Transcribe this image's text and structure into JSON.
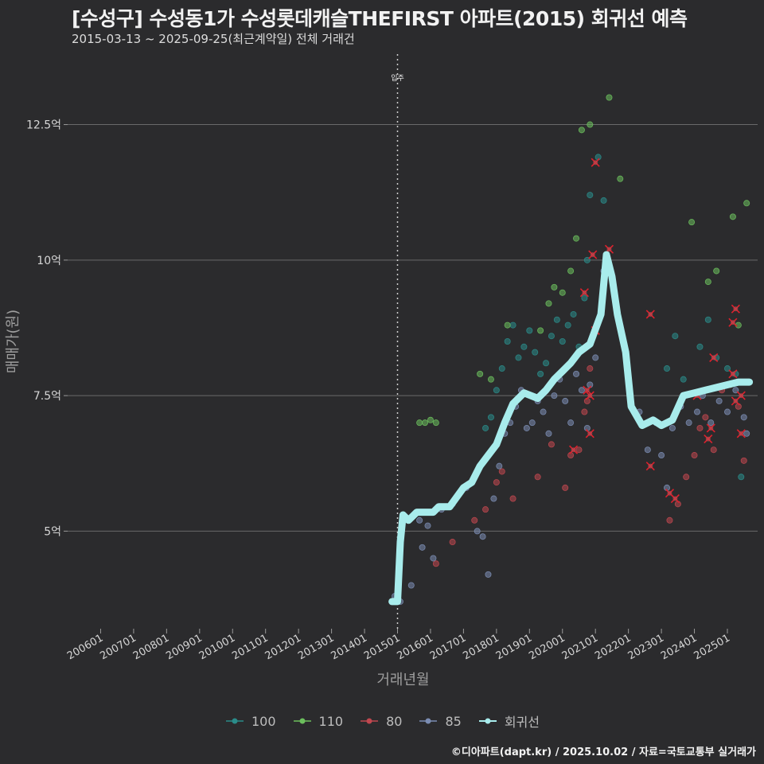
{
  "title": "[수성구] 수성동1가 수성롯데캐슬THEFIRST 아파트(2015) 회귀선 예측",
  "subtitle": "2015-03-13 ~ 2025-09-25(최근계약일) 전체 거래건",
  "footer": "©디아파트(dapt.kr) / 2025.10.02 / 자료=국토교통부 실거래가",
  "colors": {
    "background": "#2b2b2d",
    "grid": "#6a6a6a",
    "s100": "#2a8c8a",
    "s110": "#6cbf5d",
    "s80": "#c0474f",
    "s85": "#7b8db3",
    "regression": "#a8ecec",
    "cancelled_marker": "#e0202c"
  },
  "chart_data": {
    "type": "scatter",
    "xlabel": "거래년월",
    "ylabel": "매매가(원)",
    "xlim": [
      "2005-01",
      "2025-12"
    ],
    "ylim": [
      3.2,
      13.8
    ],
    "grid": true,
    "legend_position": "bottom",
    "x_ticks": [
      "200601",
      "200701",
      "200801",
      "200901",
      "201001",
      "201101",
      "201201",
      "201301",
      "201401",
      "201501",
      "201601",
      "201701",
      "201801",
      "201901",
      "202001",
      "202101",
      "202201",
      "202301",
      "202401",
      "202501"
    ],
    "y_ticks": [
      {
        "value": 5,
        "label": "5억"
      },
      {
        "value": 7.5,
        "label": "7.5억"
      },
      {
        "value": 10,
        "label": "10억"
      },
      {
        "value": 12.5,
        "label": "12.5억"
      }
    ],
    "annotation": {
      "label": "입주",
      "x": "2015-01"
    },
    "series": [
      {
        "name": "100",
        "color_key": "s100",
        "points": [
          [
            "2017-09",
            6.9
          ],
          [
            "2017-11",
            7.1
          ],
          [
            "2018-01",
            7.6
          ],
          [
            "2018-03",
            8.0
          ],
          [
            "2018-05",
            8.5
          ],
          [
            "2018-07",
            8.8
          ],
          [
            "2018-09",
            8.2
          ],
          [
            "2018-11",
            8.4
          ],
          [
            "2019-01",
            8.7
          ],
          [
            "2019-03",
            8.3
          ],
          [
            "2019-05",
            7.9
          ],
          [
            "2019-07",
            8.1
          ],
          [
            "2019-09",
            8.6
          ],
          [
            "2019-11",
            8.9
          ],
          [
            "2020-01",
            8.5
          ],
          [
            "2020-03",
            8.8
          ],
          [
            "2020-05",
            9.0
          ],
          [
            "2020-07",
            8.4
          ],
          [
            "2020-09",
            9.3
          ],
          [
            "2020-10",
            10.0
          ],
          [
            "2020-11",
            11.2
          ],
          [
            "2021-02",
            11.9
          ],
          [
            "2021-04",
            11.1
          ],
          [
            "2023-03",
            8.0
          ],
          [
            "2023-06",
            8.6
          ],
          [
            "2023-09",
            7.8
          ],
          [
            "2024-03",
            8.4
          ],
          [
            "2024-06",
            8.9
          ],
          [
            "2024-09",
            8.2
          ],
          [
            "2025-01",
            8.0
          ],
          [
            "2025-04",
            7.9
          ],
          [
            "2025-06",
            6.0
          ]
        ]
      },
      {
        "name": "110",
        "color_key": "s110",
        "points": [
          [
            "2015-09",
            7.0
          ],
          [
            "2015-11",
            7.0
          ],
          [
            "2016-01",
            7.05
          ],
          [
            "2016-03",
            7.0
          ],
          [
            "2017-07",
            7.9
          ],
          [
            "2017-11",
            7.8
          ],
          [
            "2018-05",
            8.8
          ],
          [
            "2019-05",
            8.7
          ],
          [
            "2019-08",
            9.2
          ],
          [
            "2019-10",
            9.5
          ],
          [
            "2020-01",
            9.4
          ],
          [
            "2020-04",
            9.8
          ],
          [
            "2020-06",
            10.4
          ],
          [
            "2020-08",
            12.4
          ],
          [
            "2020-11",
            12.5
          ],
          [
            "2021-06",
            13.0
          ],
          [
            "2021-10",
            11.5
          ],
          [
            "2023-12",
            10.7
          ],
          [
            "2024-06",
            9.6
          ],
          [
            "2024-09",
            9.8
          ],
          [
            "2025-03",
            10.8
          ],
          [
            "2025-08",
            11.05
          ],
          [
            "2025-05",
            8.8
          ]
        ]
      },
      {
        "name": "80",
        "color_key": "s80",
        "points": [
          [
            "2016-03",
            4.4
          ],
          [
            "2016-09",
            4.8
          ],
          [
            "2017-05",
            5.2
          ],
          [
            "2017-09",
            5.4
          ],
          [
            "2018-01",
            5.9
          ],
          [
            "2018-03",
            6.1
          ],
          [
            "2018-07",
            5.6
          ],
          [
            "2019-04",
            6.0
          ],
          [
            "2019-09",
            6.6
          ],
          [
            "2020-02",
            5.8
          ],
          [
            "2020-04",
            6.4
          ],
          [
            "2020-07",
            6.5
          ],
          [
            "2020-09",
            7.2
          ],
          [
            "2020-10",
            7.4
          ],
          [
            "2020-11",
            8.0
          ],
          [
            "2023-04",
            5.2
          ],
          [
            "2023-07",
            5.5
          ],
          [
            "2023-10",
            6.0
          ],
          [
            "2024-01",
            6.4
          ],
          [
            "2024-03",
            6.9
          ],
          [
            "2024-05",
            7.1
          ],
          [
            "2024-08",
            6.5
          ],
          [
            "2024-11",
            7.6
          ],
          [
            "2025-02",
            7.7
          ],
          [
            "2025-05",
            7.3
          ],
          [
            "2025-07",
            6.3
          ]
        ]
      },
      {
        "name": "85",
        "color_key": "s85",
        "points": [
          [
            "2014-12",
            3.8
          ],
          [
            "2015-02",
            3.7
          ],
          [
            "2015-06",
            4.0
          ],
          [
            "2015-09",
            5.2
          ],
          [
            "2015-10",
            4.7
          ],
          [
            "2015-12",
            5.1
          ],
          [
            "2016-02",
            4.5
          ],
          [
            "2016-05",
            5.4
          ],
          [
            "2016-09",
            5.5
          ],
          [
            "2017-02",
            5.8
          ],
          [
            "2017-06",
            5.0
          ],
          [
            "2017-08",
            4.9
          ],
          [
            "2017-10",
            4.2
          ],
          [
            "2017-12",
            5.6
          ],
          [
            "2018-02",
            6.2
          ],
          [
            "2018-04",
            6.8
          ],
          [
            "2018-06",
            7.0
          ],
          [
            "2018-08",
            7.3
          ],
          [
            "2018-10",
            7.6
          ],
          [
            "2018-12",
            6.9
          ],
          [
            "2019-02",
            7.0
          ],
          [
            "2019-04",
            7.4
          ],
          [
            "2019-06",
            7.2
          ],
          [
            "2019-08",
            6.8
          ],
          [
            "2019-10",
            7.5
          ],
          [
            "2019-12",
            7.8
          ],
          [
            "2020-02",
            7.4
          ],
          [
            "2020-04",
            7.0
          ],
          [
            "2020-06",
            7.9
          ],
          [
            "2020-08",
            7.6
          ],
          [
            "2020-10",
            6.9
          ],
          [
            "2020-11",
            7.7
          ],
          [
            "2021-01",
            8.2
          ],
          [
            "2021-04",
            9.8
          ],
          [
            "2022-05",
            7.2
          ],
          [
            "2022-08",
            6.5
          ],
          [
            "2022-11",
            7.0
          ],
          [
            "2023-01",
            6.4
          ],
          [
            "2023-03",
            5.8
          ],
          [
            "2023-05",
            6.9
          ],
          [
            "2023-08",
            7.3
          ],
          [
            "2023-11",
            7.0
          ],
          [
            "2024-02",
            7.2
          ],
          [
            "2024-04",
            7.5
          ],
          [
            "2024-07",
            7.0
          ],
          [
            "2024-10",
            7.4
          ],
          [
            "2025-01",
            7.2
          ],
          [
            "2025-04",
            7.6
          ],
          [
            "2025-07",
            7.1
          ],
          [
            "2025-08",
            6.8
          ]
        ]
      }
    ],
    "cancelled_points": [
      [
        "2020-09",
        9.4
      ],
      [
        "2020-12",
        10.1
      ],
      [
        "2021-01",
        11.8
      ],
      [
        "2021-06",
        10.2
      ],
      [
        "2021-01",
        8.7
      ],
      [
        "2020-05",
        6.5
      ],
      [
        "2020-10",
        7.6
      ],
      [
        "2020-11",
        6.8
      ],
      [
        "2020-11",
        7.5
      ],
      [
        "2022-09",
        9.0
      ],
      [
        "2022-09",
        6.2
      ],
      [
        "2023-04",
        5.7
      ],
      [
        "2023-06",
        5.6
      ],
      [
        "2024-02",
        7.5
      ],
      [
        "2024-06",
        6.7
      ],
      [
        "2024-07",
        6.9
      ],
      [
        "2024-08",
        8.2
      ],
      [
        "2025-03",
        8.85
      ],
      [
        "2025-04",
        9.1
      ],
      [
        "2025-03",
        7.9
      ],
      [
        "2025-04",
        7.4
      ],
      [
        "2025-06",
        7.5
      ],
      [
        "2025-06",
        6.8
      ]
    ],
    "regression": {
      "name": "회귀선",
      "color_key": "regression",
      "points": [
        [
          "2014-11",
          3.7
        ],
        [
          "2015-01",
          3.7
        ],
        [
          "2015-02",
          4.8
        ],
        [
          "2015-03",
          5.3
        ],
        [
          "2015-05",
          5.2
        ],
        [
          "2015-08",
          5.35
        ],
        [
          "2016-02",
          5.35
        ],
        [
          "2016-04",
          5.45
        ],
        [
          "2016-08",
          5.45
        ],
        [
          "2017-01",
          5.8
        ],
        [
          "2017-04",
          5.9
        ],
        [
          "2017-07",
          6.2
        ],
        [
          "2017-10",
          6.4
        ],
        [
          "2018-01",
          6.6
        ],
        [
          "2018-04",
          7.0
        ],
        [
          "2018-07",
          7.35
        ],
        [
          "2018-11",
          7.55
        ],
        [
          "2019-04",
          7.45
        ],
        [
          "2019-07",
          7.6
        ],
        [
          "2019-10",
          7.8
        ],
        [
          "2020-01",
          7.95
        ],
        [
          "2020-04",
          8.1
        ],
        [
          "2020-07",
          8.3
        ],
        [
          "2020-11",
          8.45
        ],
        [
          "2021-03",
          9.0
        ],
        [
          "2021-05",
          10.1
        ],
        [
          "2021-07",
          9.7
        ],
        [
          "2021-09",
          9.0
        ],
        [
          "2021-12",
          8.3
        ],
        [
          "2022-02",
          7.3
        ],
        [
          "2022-06",
          6.95
        ],
        [
          "2022-10",
          7.05
        ],
        [
          "2023-01",
          6.95
        ],
        [
          "2023-05",
          7.05
        ],
        [
          "2023-09",
          7.5
        ],
        [
          "2024-01",
          7.55
        ],
        [
          "2024-05",
          7.6
        ],
        [
          "2024-09",
          7.65
        ],
        [
          "2025-01",
          7.7
        ],
        [
          "2025-05",
          7.75
        ],
        [
          "2025-09",
          7.75
        ]
      ]
    }
  }
}
